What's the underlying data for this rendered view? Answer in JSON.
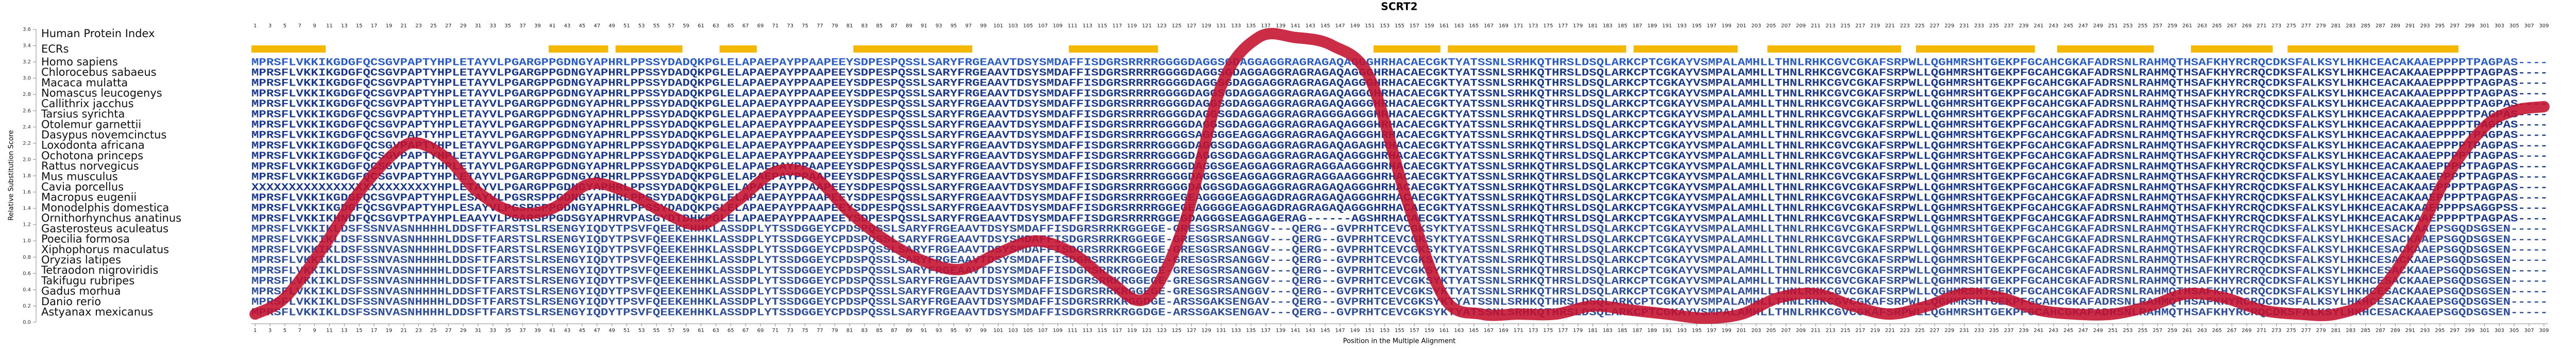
{
  "chart_data": {
    "type": "line",
    "title": "SCRT2",
    "xlabel": "Position in the Multiple Alignment",
    "ylabel": "Relative Substitution Score",
    "xlim": [
      0.5,
      309.5
    ],
    "ylim": [
      0,
      3.6
    ],
    "yticks": [
      {
        "value": 0,
        "label": "0.0"
      },
      {
        "value": 0.2,
        "label": "0.2"
      },
      {
        "value": 0.4,
        "label": "0.4"
      },
      {
        "value": 0.6,
        "label": "0.6"
      },
      {
        "value": 0.8,
        "label": "0.8"
      },
      {
        "value": 1,
        "label": "1.0"
      },
      {
        "value": 1.2,
        "label": "1.2"
      },
      {
        "value": 1.4,
        "label": "1.4"
      },
      {
        "value": 1.6,
        "label": "1.6"
      },
      {
        "value": 1.8,
        "label": "1.8"
      },
      {
        "value": 2,
        "label": "2.0"
      },
      {
        "value": 2.2,
        "label": "2.2"
      },
      {
        "value": 2.4,
        "label": "2.4"
      },
      {
        "value": 2.6,
        "label": "2.6"
      },
      {
        "value": 2.8,
        "label": "2.8"
      },
      {
        "value": 3,
        "label": "3.0"
      },
      {
        "value": 3.2,
        "label": "3.2"
      },
      {
        "value": 3.4,
        "label": "3.4"
      },
      {
        "value": 3.6,
        "label": "3.6"
      }
    ],
    "xticks": [
      1,
      3,
      5,
      7,
      9,
      11,
      13,
      15,
      17,
      19,
      21,
      23,
      25,
      27,
      29,
      31,
      33,
      35,
      37,
      39,
      41,
      43,
      45,
      47,
      49,
      51,
      53,
      55,
      57,
      59,
      61,
      63,
      65,
      67,
      69,
      71,
      73,
      75,
      77,
      79,
      81,
      83,
      85,
      87,
      89,
      91,
      93,
      95,
      97,
      99,
      101,
      103,
      105,
      107,
      109,
      111,
      113,
      115,
      117,
      119,
      121,
      123,
      125,
      127,
      129,
      131,
      133,
      135,
      137,
      139,
      141,
      143,
      145,
      147,
      149,
      151,
      153,
      155,
      157,
      159,
      161,
      163,
      165,
      167,
      169,
      171,
      173,
      175,
      177,
      179,
      181,
      183,
      185,
      187,
      189,
      191,
      193,
      195,
      197,
      199,
      201,
      203,
      205,
      207,
      209,
      211,
      213,
      215,
      217,
      219,
      221,
      223,
      225,
      227,
      229,
      231,
      233,
      235,
      237,
      239,
      241,
      243,
      245,
      247,
      249,
      251,
      253,
      255,
      257,
      259,
      261,
      263,
      265,
      267,
      269,
      271,
      273,
      275,
      277,
      279,
      281,
      283,
      285,
      287,
      289,
      291,
      293,
      295,
      297,
      299,
      301,
      303,
      305,
      307,
      309
    ],
    "color": "#c4102e",
    "x": [
      1,
      5,
      10,
      15,
      20,
      23,
      27,
      31,
      36,
      41,
      46,
      51,
      56,
      61,
      66,
      71,
      76,
      81,
      86,
      91,
      96,
      101,
      106,
      111,
      116,
      121,
      126,
      131,
      136,
      141,
      146,
      151,
      156,
      161,
      166,
      171,
      176,
      181,
      186,
      191,
      196,
      201,
      206,
      211,
      216,
      221,
      226,
      231,
      236,
      241,
      246,
      251,
      256,
      261,
      266,
      271,
      276,
      281,
      286,
      291,
      296,
      301,
      305,
      309
    ],
    "values": [
      0.1,
      0.3,
      0.9,
      1.6,
      2.1,
      2.2,
      2.0,
      1.6,
      1.35,
      1.4,
      1.7,
      1.6,
      1.35,
      1.2,
      1.5,
      1.85,
      1.8,
      1.35,
      1.0,
      0.75,
      0.65,
      0.85,
      1.0,
      0.85,
      0.5,
      0.3,
      1.2,
      2.9,
      3.5,
      3.5,
      3.4,
      3.0,
      1.5,
      0.3,
      0.1,
      0.1,
      0.1,
      0.2,
      0.15,
      0.1,
      0.05,
      0.1,
      0.3,
      0.35,
      0.2,
      0.1,
      0.2,
      0.35,
      0.3,
      0.15,
      0.1,
      0.1,
      0.2,
      0.35,
      0.3,
      0.15,
      0.1,
      0.1,
      0.3,
      0.9,
      1.8,
      2.4,
      2.6,
      2.65
    ],
    "alignment": {
      "index_label": "Human Protein Index",
      "human_index": [
        1,
        3,
        5,
        7,
        9,
        11,
        13,
        15,
        17,
        19,
        21,
        23,
        25,
        27,
        29,
        31,
        33,
        35,
        37,
        39,
        41,
        43,
        45,
        47,
        49,
        51,
        53,
        55,
        57,
        59,
        61,
        63,
        65,
        67,
        69,
        71,
        73,
        75,
        77,
        79,
        81,
        83,
        85,
        87,
        89,
        91,
        93,
        95,
        97,
        99,
        101,
        103,
        105,
        107,
        109,
        111,
        113,
        115,
        117,
        119,
        121,
        123,
        125,
        127,
        129,
        131,
        133,
        135,
        137,
        139,
        141,
        143,
        145,
        147,
        149,
        151,
        153,
        155,
        157,
        159,
        161,
        163,
        165,
        167,
        169,
        171,
        173,
        175,
        177,
        179,
        181,
        183,
        185,
        187,
        189,
        191,
        193,
        195,
        197,
        199,
        201,
        203,
        205,
        207,
        209,
        211,
        213,
        215,
        217,
        219,
        221,
        223,
        225,
        227,
        229,
        231,
        233,
        235,
        237,
        239,
        241,
        243,
        245,
        247,
        249,
        251,
        253,
        255,
        257,
        259,
        261,
        263,
        265,
        267,
        269,
        271,
        273,
        275,
        277,
        279,
        281,
        283,
        285,
        287,
        289,
        291,
        293,
        295,
        297,
        299,
        301,
        303,
        305,
        307,
        309
      ],
      "ecr_label": "ECRs",
      "ecr_color": "#f5b800",
      "ecrs": [
        [
          1,
          10
        ],
        [
          41,
          48
        ],
        [
          50,
          58
        ],
        [
          64,
          68
        ],
        [
          82,
          97
        ],
        [
          111,
          122
        ],
        [
          152,
          160
        ],
        [
          162,
          185
        ],
        [
          187,
          200
        ],
        [
          205,
          222
        ],
        [
          225,
          240
        ],
        [
          244,
          256
        ],
        [
          262,
          272
        ],
        [
          275,
          297
        ]
      ],
      "rows": [
        {
          "name": "Homo sapiens",
          "color": "#2a5cc8",
          "sequence": "MPRSFLVKKIKGDGFQCSGVPAPTYHPLETAYVLPGARGPPGDNGYAPHRLPPSSYDADQKPGLELAPAEPAYPPAAPEEYSDPESPQSSLSARYFRGEAAVTDSYSMDAFFISDGRSRRRRGGGGDAGGSGDAGGAGGRAGRAGAQAGGGHRHACAECGKTYATSSNLSRHKQTHRSLDSQLARKCPTCGKAYVSMPALAMHLLTHNLRHKCGVCGKAFSRPWLLQGHMRSHTGEKPFGCAHCGKAFADRSNLRAHMQTHSAFKHYRCRQCDKSFALKSYLHKHCEACAKAAEPPPPTPAGPAS----"
        },
        {
          "name": "Chlorocebus sabaeus",
          "color": "#1b3a8e",
          "sequence": "MPRSFLVKKIKGDGFQCSGVPAPTYHPLETAYVLPGARGPPGDNGYAPHRLPPSSYDADQKPGLELAPAEPAYPPAAPEEYSDPESPQSSLSARYFRGEAAVTDSYSMDAFFISDGRSRRRRGGGGDAGGSGDAGGAGGRAGRAGAQAGGGHRHACAECGKTYATSSNLSRHKQTHRSLDSQLARKCPTCGKAYVSMPALAMHLLTHNLRHKCGVCGKAFSRPWLLQGHMRSHTGEKPFGCAHCGKAFADRSNLRAHMQTHSAFKHYRCRQCDKSFALKSYLHKHCEACAKAAEPPPPTPAGPAS----"
        },
        {
          "name": "Macaca mulatta",
          "color": "#1b3a8e",
          "sequence": "MPRSFLVKKIKGDGFQCSGVPAPTYHPLETAYVLPGARGPPGDNGYAPHRLPPSSYDADQKPGLELAPAEPAYPPAAPEEYSDPESPQSSLSARYFRGEAAVTDSYSMDAFFISDGRSRRRRGGGGDAGGSGDAGGAGGRAGRAGAQAGGGHRHACAECGKTYATSSNLSRHKQTHRSLDSQLARKCPTCGKAYVSMPALAMHLLTHNLRHKCGVCGKAFSRPWLLQGHMRSHTGEKPFGCAHCGKAFADRSNLRAHMQTHSAFKHYRCRQCDKSFALKSYLHKHCEACAKAAEPPPPTPAGPAS----"
        },
        {
          "name": "Nomascus leucogenys",
          "color": "#1b3a8e",
          "sequence": "MPRSFLVKKIKGDGFQCSGVPAPTYHPLETAYVLPGARGPPGDNGYAPHRLPPSSYDADQKPGLELAPAEPAYPPAAPEEYSDPESPQSSLSARYFRGEAAVTDSYSMDAFFISDGRSRRRRGGGGDAGGSGDAGGAGGRAGRAGAQAGGGHRHACAECGKTYATSSNLSRHKQTHRSLDSQLARKCPTCGKAYVSMPALAMHLLTHNLRHKCGVCGKAFSRPWLLQGHMRSHTGEKPFGCAHCGKAFADRSNLRAHMQTHSAFKHYRCRQCDKSFALKSYLHKHCEACAKAAEPPPPTPAGPAS----"
        },
        {
          "name": "Callithrix jacchus",
          "color": "#1b3a8e",
          "sequence": "MPRSFLVKKIKGDGFQCSGVPAPTYHPLETAYVLPGARGPPGDNGYAPHRLPPSSYDADQKPGLELAPAEPAYPPAAPEEYSDPESPQSSLSARYFRGEAAVTDSYSMDAFFISDGRSRRRRGGGGDAGGSGDAGGAGGRAGRAGAQAGGGHRHACAECGKTYATSSNLSRHKQTHRSLDSQLARKCPTCGKAYVSMPALAMHLLTHNLRHKCGVCGKAFSRPWLLQGHMRSHTGEKPFGCAHCGKAFADRSNLRAHMQTHSAFKHYRCRQCDKSFALKSYLHKHCEACAKAAEPPPPTPAGPAS----"
        },
        {
          "name": "Tarsius syrichta",
          "color": "#1b3a8e",
          "sequence": "MPRSFLVKKIKGDGFQCSGVPAPTYHPLETAYVLPGARGPPGDNGYAPHRLPPSSYDADQKPGLELAPAEPAYPPAAPEEYSDPESPQSSLSARYFRGEAAVTDSYSMDAFFISDGRSRRRRGGGGDAGGSGDAGGAGGRAGRAGGGAGGGHRHACAECGKTYATSSNLSRHKQTHRSLDSQLARKCPTCGKAYVSMPALAMHLLTHNLRHKCGVCGKAFSRPWLLQGHMRSHTGEKPFGCAHCGKAFADRSNLRAHMQTHSAFKHYRCRQCDKSFALKSYLHKHCEACAKAAEPPPPTPAGPAS----"
        },
        {
          "name": "Otolemur garnettii",
          "color": "#1b3a8e",
          "sequence": "MPRSFLVKKIKGDGFQCSGVPAPTYHPLETAYVLPGARGPPGDNGYAPHRLPPSSYDADQKPGLELAPAEPAYPPAAPEEYSDPESPQSSLSARYFRGEAAVTDSYSMDAFFISDGRSRRRRGGGGDAGGSGDAGGAGGRAGRAGAQAGGGHRHACAECGKTYATSSNLSRHKQTHRSLDSQLARKCPTCGKAYVSMPALAMHLLTHNLRHKCGVCGKAFSRPWLLQGHMRSHTGEKPFGCAHCGKAFADRSNLRAHMQTHSAFKHYRCRQCDKSFALKSYLHKHCEACAKAAEPPPPTPAGPAS----"
        },
        {
          "name": "Dasypus novemcinctus",
          "color": "#1b3a8e",
          "sequence": "MPRSFLVKKIKGDGFQCSGVPAPTYHPLETAYVLPGARGPPGDNGYAPHRLPPSSYDADQKPGLELAPAEPAYPPAAPEEYSDPESPQSSLSARYFRGEAAVTDSYSMDAFFISDGRSRRRRGGGGSAGGGGEAGGAGGRAGRAGAQAGGGHRHACAECGKTYATSSNLSRHKQTHRSLDSQLARKCPTCGKAYVSMPALAMHLLTHNLRHKCGVCGKAFSRPWLLQGHMRSHTGEKPFGCAHCGKAFADRSNLRAHMQTHSAFKHYRCRQCDKSFALKSYLHKHCEACAKAAEPPPPTPAGPAS----"
        },
        {
          "name": "Loxodonta africana",
          "color": "#1b3a8e",
          "sequence": "MPRSFLVKKIKGDGFQCSGVPAPTYHPLETAYVLPGARGPPGDNGYAPHRLPPSSYDADQKPGLELAPAEPAYPPAAPEEYSDPESPQSSLSARYFRGEAAVTDSYSMDAFFISDGRSRRRRGGGGDAGGSGDAGGAGGRAGRAGAQAGAGHRHACAECGKTYATSSNLSRHKQTHRSLDSQLARKCPTCGKAYVSMPALAMHLLTHNLRHKCGVCGKAFSRPWLLQGHMRSHTGEKPFGCAHCGKAFADRSNLRAHMQTHSAFKHYRCRQCDKSFALKSYLHKHCEACAKAAEPPPPTPAGPAS----"
        },
        {
          "name": "Ochotona princeps",
          "color": "#1b3a8e",
          "sequence": "MPRSFLVKKIKGDGFQCSGVPAPTYHPLETAYVLPGARGPPGDNGYAPHRLPPSSYDADQKPGLELAPAEPAYPPAAPEEYSDPESPQSSLSARYFRGEAAVTDSYSMDAFFISDGRSRRRRGGGGDAGGSGDAGGAGGRAGRAGAQAGGGHRHACAECGKTYATSSNLSRHKQTHRSLDSQLARKCPTCGKAYVSMPALAMHLLTHNLRHKCGVCGKAFSRPWLLQGHMRSHTGEKPFGCAHCGKAFADRSNLRAHMQTHSAFKHYRCRQCDKSFALKSYLHKHCEACAKAAEPPPPTPAGPAS----"
        },
        {
          "name": "Rattus norvegicus",
          "color": "#1b3a8e",
          "sequence": "MPRSFLVKKIKGDGFQCSGVPAPTYHPLETAYVLPGARGPPGDNGYAPHRLPPSSYDADQKPGLELAPAEPAYPPAAPEEYSDPESPQSSLSARYFRGEAAVTDSYSMDAFFISDGRSRRRRGGGGDAGGSGEAGGAGGRAGRAGGAAGGGHRHACAECGKTYATSSNLSRHKQTHRSLDSQLARKCPTCGKAYVSMPALAMHLLTHNLRHKCGVCGKAFSRPWLLQGHMRSHTGEKPFGCAHCGKAFADRSNLRAHMQTHSAFKHYRCRQCDKSFALKSYLHKHCEACAKAAEPPPPTPAGPAS----"
        },
        {
          "name": "Mus musculus",
          "color": "#1b3a8e",
          "sequence": "MPRSFLVKKIKGDGFQCSGVPAPTYHPLETAYVLPGARGPPGDNGYAPHRLPPSSYDADQKPGLELAPAEPAYPPAAPEEYSDPESPQSSLSARYFRGEAAVTDSYSMDAFFISDGRSRRRRGGGGDAGGSGEAGGAGGRAGRAGGAAGGGHRHACAECGKTYATSSNLSRHKQTHRSLDSQLARKCPTCGKAYVSMPALAMHLLTHNLRHKCGVCGKAFSRPWLLQGHMRSHTGEKPFGCAHCGKAFADRSNLRAHMQTHSAFKHYRCRQCDKSFALKSYLHKHCEACAKAAEPPPPTPAGPAS----"
        },
        {
          "name": "Cavia porcellus",
          "color": "#1b3a8e",
          "sequence": "XXXXXXXXXXXXXXXXXXXXXXXXYHPLETAYVLPGARGPPGDNGYAPHRLPPSSYDADQKPGLELAPAEPAYPPAAPEEYSDPESPQSSLSARYFRGEAAVTDSYSMDAFFISDGRSRRRRGGGGDAGGSGDAGGAGGRAGRAGAQAGGGHRHACAECGKTYATSSNLSRHKQTHRSLDSQLARKCPTCGKAYVSMPALAMHLLTHNLRHKCGVCGKAFSRPWLLQGHMRSHTGEKPFGCAHCGKAFADRSNLRAHMQTHSAFKHYRCRQCDKSFALKSYLHKHCEACAKAAEPPPPTPAGPAS----"
        },
        {
          "name": "Macropus eugenii",
          "color": "#1b3a8e",
          "sequence": "MPRSFLVKKIKGDGFQCSGVPAPTYHPLESAYVLPGSRSPPGDNGYAPHRLPPSSYDADQKPGLELAPAEPAYPPAAPEEYSDPESPQSSLSARYFRGEAAVTDSYSMDAFFISDGRSRRRRGGEGEAGGGGEAGGAGDRAGRAGAQAGGGHRHACAECGKTYATSSNLSRHKQTHRSLDSQLARKCPTCGKAYVSMPALAMHLLTHNLRHKCGVCGKAFSRPWLLQGHMRSHTGEKPFGCAHCGKAFADRSNLRAHMQTHSAFKHYRCRQCDKSFALKSYLHKHCEACAKAAEPPPPTPAGPAS----"
        },
        {
          "name": "Monodelphis domestica",
          "color": "#1b3a8e",
          "sequence": "MPRSFLVKKIKGDGFQCSGVPAPTYHPLESAYVLPGSRSPPGDNGYAPHRLPPSSYDADQKPGLELAPAEPAYPPAAPEEYSDPESPQSSLSARYFRGEAAVTDSYSMDAFFISDGRSRRRRGGEGEAGGGGEAGGAGDRAGRAGAQAGGGHRHACAECGKTYATSSNLSRHKQTHRSLDSQLARKCPTCGKAYVSMPALAMHLLTHNLRHKCGVCGKAFSRPWLLQGHMRSHTGEKPFGCAHCGKAFADRSNLRAHMQTHSAFKHYRCRQCDKSFALKSYLHKHCEACAKAAEPPPPSAGGPSS----"
        },
        {
          "name": "Ornithorhynchus anatinus",
          "color": "#1b3a8e",
          "sequence": "MPRSFLVKKIKHNDFQCSGVPTPAYHPLEAAYVLPGARSPPGDSGYAPHRVPASGYDTDHKPGLELAPAEPAYPPAAPEEYSDPESPQSSLSARYFRGEAAVTDSYSMDAFFISDGRSRRRRGGEGDAGGGSEAGGAGERAG------AGSHRHACAECGKTYATSSNLSRHKQTHRSLDSQLARKCPTCGKAYVSMPALAMHLLTHNLRHKCGVCGKAFSRPWLLQGHMRSHTGEKPFGCAHCGKAFADRSNLRAHMQTHSAFKHYRCRQCDKSFALKSYLHKHCEACAKAAEPPPPTPAGPAS----"
        },
        {
          "name": "Gasterosteus aculeatus",
          "color": "#2f4f9c",
          "sequence": "MPRSFLVKKIKLDSFSSNVASNHHHHLDDSFTFARSTSLRSENGYIQDYTPSVFQEEKEHHKLASSDPLYTSSDGGEYCPDSPQSSLSARYFRGEAAVTDSYSMDAFFISDGRSRRKRGGEGE-GRESGSRSANGGV---QERG--GVPRHTCEVCGKSYKTYATSSNLSRHKQTHRSLDSQLARKCPTCGKAYVSMPALAMHLLTHNLRHKCGVCGKAFSRPWLLQGHMRSHTGEKPFGCAHCGKAFADRSNLRAHMQTHSAFKHYRCRQCDKSFALKSYLHKHCESACKAAEPSGQDSGSEN-----"
        },
        {
          "name": "Poecilia formosa",
          "color": "#2f4f9c",
          "sequence": "MPRSFLVKKIKLDSFSSNVASNHHHHLDDSFTFARSTSLRSENGYIQDYTPSVFQEEKEHHKLASSDPLYTSSDGGEYCPDSPQSSLSARYFRGEAAVTDSYSMDAFFISDGRSRRKRGGEGE-GRESGSRSANGGV---QERG--GVPRHTCEVCGKSYKTYATSSNLSRHKQTHRSLDSQLARKCPTCGKAYVSMPALAMHLLTHNLRHKCGVCGKAFSRPWLLQGHMRSHTGEKPFGCAHCGKAFADRSNLRAHMQTHSAFKHYRCRQCDKSFALKSYLHKHCESACKAAEPSGQDSGSEN-----"
        },
        {
          "name": "Xiphophorus maculatus",
          "color": "#2f4f9c",
          "sequence": "MPRSFLVKKIKLDSFSSNVASNHHHHLDDSFTFARSTSLRSENGYIQDYTPSVFQEEKEHHKLASSDPLYTSSDGGEYCPDSPQSSLSARYFRGEAAVTDSYSMDAFFISDGRSRRKRGGEGE-GRESGSRSANGGV---QERG--GVPRHTCEVCGKSYKTYATSSNLSRHKQTHRSLDSQLARKCPTCGKAYVSMPALAMHLLTHNLRHKCGVCGKAFSRPWLLQGHMRSHTGEKPFGCAHCGKAFADRSNLRAHMQTHSAFKHYRCRQCDKSFALKSYLHKHCESACKAAEPSGQDSGSEN-----"
        },
        {
          "name": "Oryzias latipes",
          "color": "#2f4f9c",
          "sequence": "MPRSFLVKKIKLDSFSSNVASNHHHHLDDSFTFARSTSLRSENGYIQDYTPSVFQEEKEHHKLASSDPLYTSSDGGEYCPDSPQSSLSARYFRGEAAVTDSYSMDAFFISDGRSRRKRGGEGE-GRESGSRSANGGV---QERG--GVPRHTCEVCGKSYKTYATSSNLSRHKQTHRSLDSQLARKCPTCGKAYVSMPALAMHLLTHNLRHKCGVCGKAFSRPWLLQGHMRSHTGEKPFGCAHCGKAFADRSNLRAHMQTHSAFKHYRCRQCDKSFALKSYLHKHCESACKAAEPSGQDSGSEN-----"
        },
        {
          "name": "Tetraodon nigroviridis",
          "color": "#2f4f9c",
          "sequence": "MPRSFLVKKIKLDSFSSNVASNHHHHLDDSFTFARSTSLRSENGYIQDYTPSVFQEEKEHHKLASSDPLYTSSDGGEYCPDSPQSSLSARYFRGEAAVTDSYSMDAFFISDGRSRRKRGGEGE-GRESGSRSANGGV---QERG--GVPRHTCEVCGKSYKTYATSSNLSRHKQTHRSLDSQLARKCPTCGKAYVSMPALAMHLLTHNLRHKCGVCGKAFSRPWLLQGHMRSHTGEKPFGCAHCGKAFADRSNLRAHMQTHSAFKHYRCRQCDKSFALKSYLHKHCESACKAAEPSGQDSGSEN-----"
        },
        {
          "name": "Takifugu rubripes",
          "color": "#2f4f9c",
          "sequence": "MPRSFLVKKIKLDSFSSNVASNHHHHLDDSFTFARSTSLRSENGYIQDYTPSVFQEEKEHHKLASSDPLYTSSDGGEYCPDSPQSSLSARYFRGEAAVTDSYSMDAFFISDGRSRRKRGGEGE-GRESGSRSANGGV---QERG--GVPRHTCEVCGKSYKTYATSSNLSRHKQTHRSLDSQLARKCPTCGKAYVSMPALAMHLLTHNLRHKCGVCGKAFSRPWLLQGHMRSHTGEKPFGCAHCGKAFADRSNLRAHMQTHSAFKHYRCRQCDKSFALKSYLHKHCESACKAAEPSGQDSGSEN-----"
        },
        {
          "name": "Gadus morhua",
          "color": "#2f4f9c",
          "sequence": "MPRSFLVKKIKLDSFSSNVASNHHHHLDDSFTFARSTSLRSENGYIQDYTPSVFQEEKEHHKLASSDPLYTSSDGGEYCPDSPQSSLSARYFRGEAAVTDSYSMDAFFISDGRSRRKRGGEGE-GRESGSRSANGGV---QERG--GVPRHTCEVCGKSYKTYATSSNLSRHKQTHRSLDSQLARKCPTCGKAYVSMPALAMHLLTHNLRHKCGVCGKAFSRPWLLQGHMRSHTGEKPFGCAHCGKAFADRSNLRAHMQTHSAFKHYRCRQCDKSFALKSYLHKHCESACKAAEPSGQDSGSEN-----"
        },
        {
          "name": "Danio rerio",
          "color": "#2f4f9c",
          "sequence": "MPRSFLVKKIKLDSFSSNVASNHHHHLDDSFTFARSTSLRSENGYIQDYTPSVFQEEKEHHKLASSDPLYTSSDGGEYCPDSPQSSLSARYFRGEAAVTDSYSMDAFFISDGRSRRKRGGDGE-ARSSGAKSENGAV---QERG--GVPRHTCEVCGKSYKTYATSSNLSRHKQTHRSLDSQLARKCPTCGKAYVSMPALAMHLLTHNLRHKCGVCGKAFSRPWLLQGHMRSHTGEKPFGCAHCGKAFADRSNLRAHMQTHSAFKHYRCRQCDKSFALKSYLHKHCESACKAAEPSGQDSGSEN-----"
        },
        {
          "name": "Astyanax mexicanus",
          "color": "#2f4f9c",
          "sequence": "MPRSFLVKKIKLDSFSSNVASNHHHHLDDSFTFARSTSLRSENGYIQDYTPSVFQEEKEHHKLASSDPLYTSSDGGEYCPDSPQSSLSARYFRGEAAVTDSYSMDAFFISDGRSRRKRGGDGE-ARSSGAKSENGAV---QERG--GVPRHTCEVCGKSYKTYATSSNLSRHKQTHRSLDSQLARKCPTCGKAYVSMPALAMHLLTHNLRHKCGVCGKAFSRPWLLQGHMRSHTGEKPFGCAHCGKAFADRSNLRAHMQTHSAFKHYRCRQCDKSFALKSYLHKHCESACKAAEPSGQDSGSEN-----"
        }
      ]
    }
  }
}
